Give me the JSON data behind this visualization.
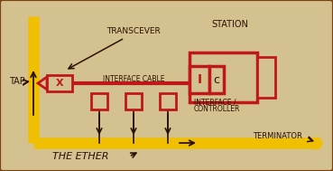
{
  "bg_color": "#d4c190",
  "border_color": "#7a4010",
  "dark_red": "#c01818",
  "yellow": "#f0c000",
  "brown": "#2a1000",
  "figsize": [
    3.69,
    1.89
  ],
  "dpi": 100,
  "labels": {
    "tap": "TAP",
    "transcever": "TRANSCEVER",
    "station": "STATION",
    "interface_cable": "INTERFACE CABLE",
    "interface": "INTERFACE /",
    "controller": "CONTROLLER",
    "the_ether": "THE ETHER",
    "terminator": "TERMINATOR"
  }
}
